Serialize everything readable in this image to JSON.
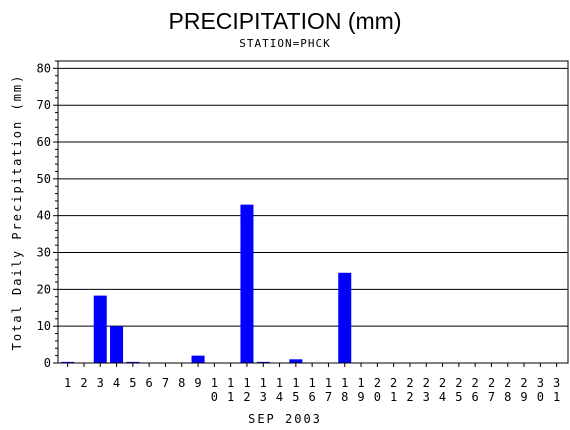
{
  "chart_data": {
    "type": "bar",
    "title": "PRECIPITATION (mm)",
    "subtitle": "STATION=PHCK",
    "xlabel": "SEP 2003",
    "ylabel": "Total Daily Precipitation (mm)",
    "ylim": [
      0,
      82
    ],
    "yticks": [
      0,
      10,
      20,
      30,
      40,
      50,
      60,
      70,
      80
    ],
    "grid": true,
    "bar_color": "#0000ff",
    "categories": [
      "1",
      "2",
      "3",
      "4",
      "5",
      "6",
      "7",
      "8",
      "9",
      "10",
      "11",
      "12",
      "13",
      "14",
      "15",
      "16",
      "17",
      "18",
      "19",
      "20",
      "21",
      "22",
      "23",
      "24",
      "25",
      "26",
      "27",
      "28",
      "29",
      "30",
      "31"
    ],
    "values": [
      0.3,
      0,
      18.3,
      10,
      0.3,
      0,
      0,
      0,
      2,
      0,
      0,
      43,
      0.3,
      0,
      1,
      0,
      0,
      24.5,
      0,
      0,
      0,
      0,
      0,
      0,
      0,
      0,
      0,
      0,
      0,
      0,
      0
    ]
  }
}
